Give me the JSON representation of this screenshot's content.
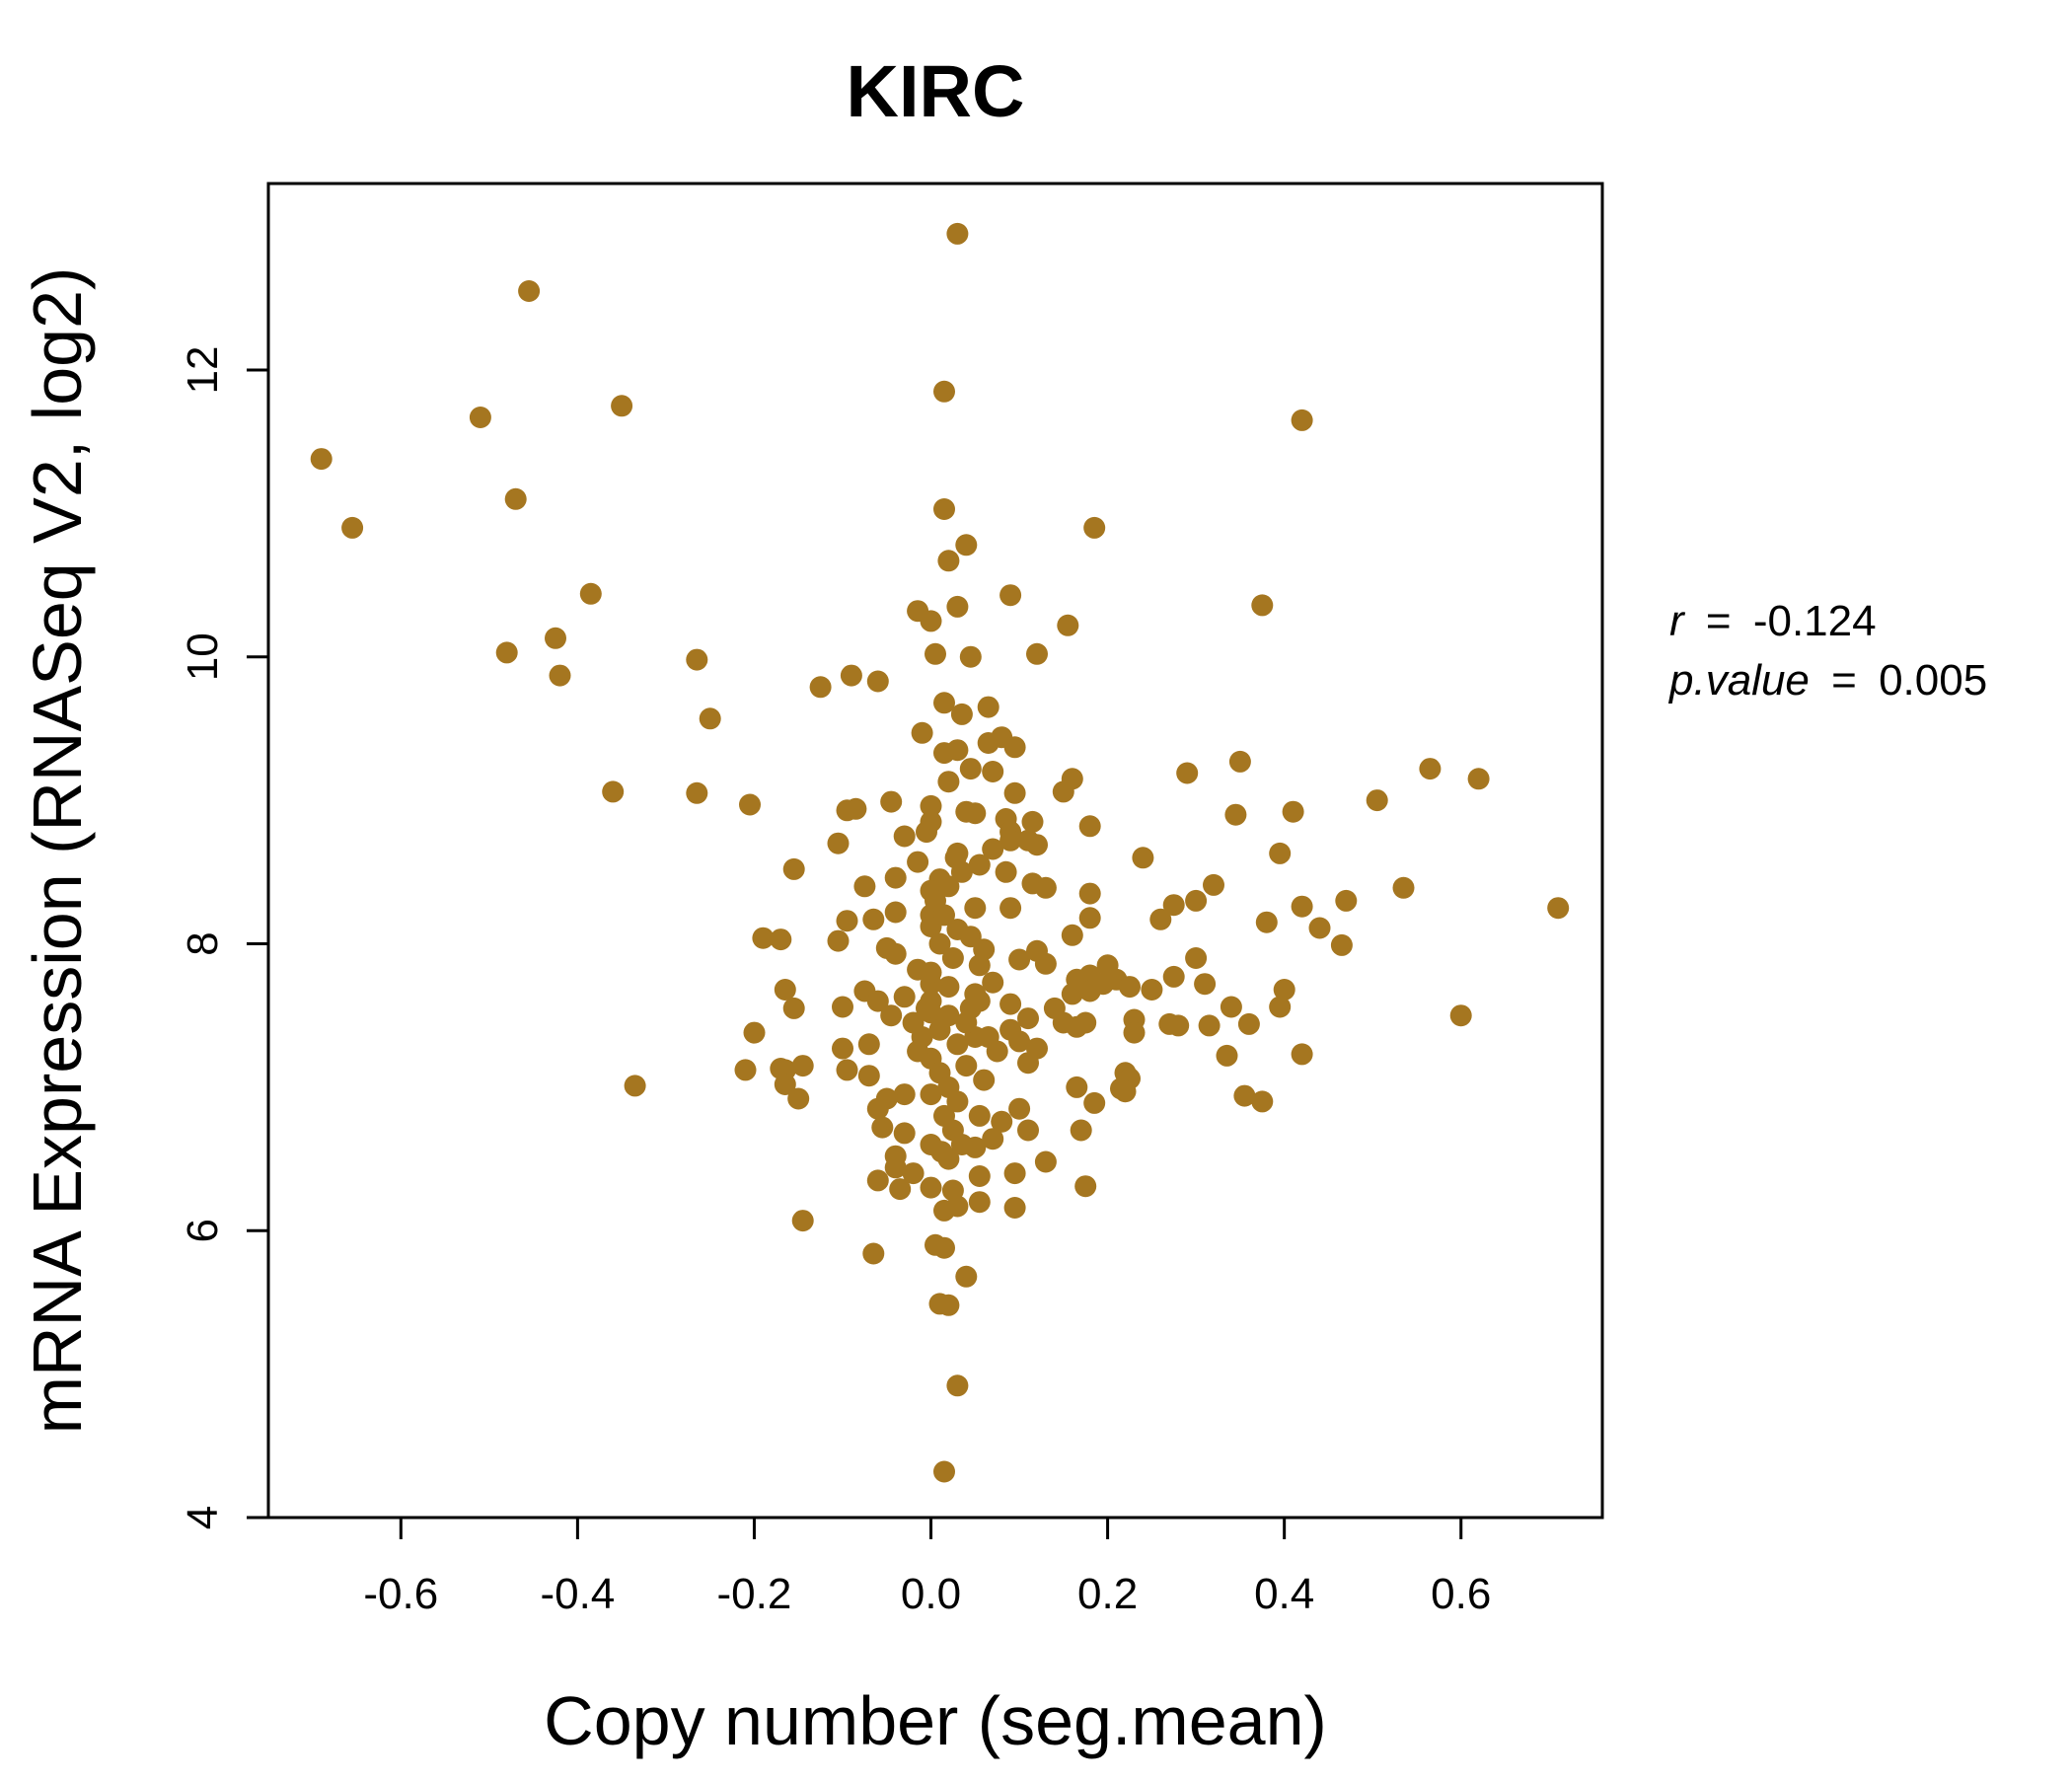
{
  "chart_data": {
    "type": "scatter",
    "title": "KIRC",
    "xlabel": "Copy number (seg.mean)",
    "ylabel": "mRNA Expression (RNASeq V2, log2)",
    "xlim": [
      -0.75,
      0.76
    ],
    "ylim": [
      4.0,
      13.3
    ],
    "x_ticks": [
      -0.6,
      -0.4,
      -0.2,
      0.0,
      0.2,
      0.4,
      0.6
    ],
    "x_tick_labels": [
      "-0.6",
      "-0.4",
      "-0.2",
      "0.0",
      "0.2",
      "0.4",
      "0.6"
    ],
    "y_ticks": [
      4,
      6,
      8,
      10,
      12
    ],
    "y_tick_labels": [
      "4",
      "6",
      "8",
      "10",
      "12"
    ],
    "grid": false,
    "legend": "none",
    "point_color": "#A57620",
    "title_color": "#A57620",
    "annotations": {
      "r_label": "r",
      "r_value": "-0.124",
      "p_label": "p.value",
      "p_value": "0.005",
      "equals": "="
    },
    "points": [
      [
        0.03,
        12.95
      ],
      [
        -0.455,
        12.55
      ],
      [
        -0.51,
        11.67
      ],
      [
        -0.35,
        11.75
      ],
      [
        0.015,
        11.85
      ],
      [
        0.42,
        11.65
      ],
      [
        -0.69,
        11.38
      ],
      [
        -0.47,
        11.1
      ],
      [
        -0.655,
        10.9
      ],
      [
        0.015,
        11.03
      ],
      [
        0.185,
        10.9
      ],
      [
        0.04,
        10.78
      ],
      [
        0.02,
        10.67
      ],
      [
        -0.385,
        10.44
      ],
      [
        0.09,
        10.43
      ],
      [
        0.03,
        10.35
      ],
      [
        0.375,
        10.36
      ],
      [
        -0.015,
        10.32
      ],
      [
        0.0,
        10.25
      ],
      [
        0.155,
        10.22
      ],
      [
        -0.425,
        10.13
      ],
      [
        -0.48,
        10.03
      ],
      [
        0.12,
        10.02
      ],
      [
        0.005,
        10.02
      ],
      [
        0.045,
        10.0
      ],
      [
        -0.265,
        9.98
      ],
      [
        -0.42,
        9.87
      ],
      [
        -0.09,
        9.87
      ],
      [
        -0.06,
        9.83
      ],
      [
        -0.125,
        9.79
      ],
      [
        0.015,
        9.68
      ],
      [
        0.065,
        9.65
      ],
      [
        0.035,
        9.6
      ],
      [
        -0.25,
        9.57
      ],
      [
        -0.01,
        9.47
      ],
      [
        0.08,
        9.44
      ],
      [
        0.065,
        9.4
      ],
      [
        0.095,
        9.37
      ],
      [
        0.03,
        9.35
      ],
      [
        0.015,
        9.33
      ],
      [
        0.045,
        9.22
      ],
      [
        0.07,
        9.2
      ],
      [
        0.565,
        9.22
      ],
      [
        0.35,
        9.27
      ],
      [
        0.29,
        9.19
      ],
      [
        0.62,
        9.15
      ],
      [
        0.16,
        9.15
      ],
      [
        0.02,
        9.13
      ],
      [
        -0.36,
        9.06
      ],
      [
        -0.265,
        9.05
      ],
      [
        0.15,
        9.06
      ],
      [
        0.095,
        9.05
      ],
      [
        0.505,
        9.0
      ],
      [
        -0.045,
        8.99
      ],
      [
        -0.205,
        8.97
      ],
      [
        0.0,
        8.96
      ],
      [
        -0.095,
        8.93
      ],
      [
        -0.085,
        8.94
      ],
      [
        0.04,
        8.92
      ],
      [
        0.05,
        8.91
      ],
      [
        0.41,
        8.92
      ],
      [
        0.345,
        8.9
      ],
      [
        0.085,
        8.87
      ],
      [
        0.115,
        8.85
      ],
      [
        0.0,
        8.85
      ],
      [
        0.18,
        8.82
      ],
      [
        0.09,
        8.78
      ],
      [
        -0.005,
        8.78
      ],
      [
        -0.03,
        8.75
      ],
      [
        0.11,
        8.72
      ],
      [
        0.09,
        8.72
      ],
      [
        -0.105,
        8.7
      ],
      [
        0.12,
        8.69
      ],
      [
        0.07,
        8.66
      ],
      [
        0.03,
        8.63
      ],
      [
        0.395,
        8.63
      ],
      [
        0.24,
        8.6
      ],
      [
        -0.015,
        8.57
      ],
      [
        0.055,
        8.55
      ],
      [
        -0.155,
        8.52
      ],
      [
        0.085,
        8.5
      ],
      [
        -0.04,
        8.46
      ],
      [
        0.01,
        8.45
      ],
      [
        0.115,
        8.42
      ],
      [
        0.32,
        8.41
      ],
      [
        -0.075,
        8.4
      ],
      [
        0.13,
        8.39
      ],
      [
        0.535,
        8.39
      ],
      [
        0.18,
        8.35
      ],
      [
        0.0,
        8.37
      ],
      [
        0.3,
        8.3
      ],
      [
        0.47,
        8.3
      ],
      [
        0.42,
        8.26
      ],
      [
        0.275,
        8.27
      ],
      [
        0.71,
        8.25
      ],
      [
        0.09,
        8.25
      ],
      [
        -0.04,
        8.22
      ],
      [
        0.0,
        8.2
      ],
      [
        0.18,
        8.18
      ],
      [
        0.26,
        8.17
      ],
      [
        -0.095,
        8.16
      ],
      [
        -0.065,
        8.17
      ],
      [
        0.38,
        8.15
      ],
      [
        0.44,
        8.11
      ],
      [
        0.0,
        8.12
      ],
      [
        0.16,
        8.06
      ],
      [
        -0.19,
        8.04
      ],
      [
        -0.17,
        8.03
      ],
      [
        -0.105,
        8.02
      ],
      [
        0.465,
        7.99
      ],
      [
        -0.05,
        7.97
      ],
      [
        0.06,
        7.96
      ],
      [
        0.12,
        7.95
      ],
      [
        -0.04,
        7.93
      ],
      [
        0.3,
        7.9
      ],
      [
        0.1,
        7.89
      ],
      [
        0.13,
        7.86
      ],
      [
        0.2,
        7.85
      ],
      [
        -0.015,
        7.82
      ],
      [
        0.18,
        7.78
      ],
      [
        0.275,
        7.77
      ],
      [
        0.165,
        7.75
      ],
      [
        0.21,
        7.75
      ],
      [
        0.07,
        7.73
      ],
      [
        0.31,
        7.72
      ],
      [
        0.195,
        7.72
      ],
      [
        0.0,
        7.72
      ],
      [
        0.225,
        7.7
      ],
      [
        -0.165,
        7.68
      ],
      [
        0.25,
        7.68
      ],
      [
        0.4,
        7.68
      ],
      [
        -0.075,
        7.67
      ],
      [
        0.18,
        7.67
      ],
      [
        0.16,
        7.65
      ],
      [
        -0.03,
        7.63
      ],
      [
        0.055,
        7.6
      ],
      [
        -0.06,
        7.6
      ],
      [
        0.09,
        7.58
      ],
      [
        -0.1,
        7.56
      ],
      [
        0.34,
        7.56
      ],
      [
        0.395,
        7.56
      ],
      [
        -0.155,
        7.55
      ],
      [
        0.14,
        7.55
      ],
      [
        0.0,
        7.52
      ],
      [
        0.6,
        7.5
      ],
      [
        -0.045,
        7.5
      ],
      [
        0.11,
        7.48
      ],
      [
        0.23,
        7.47
      ],
      [
        0.15,
        7.45
      ],
      [
        0.175,
        7.45
      ],
      [
        0.27,
        7.44
      ],
      [
        0.28,
        7.43
      ],
      [
        0.315,
        7.43
      ],
      [
        0.36,
        7.44
      ],
      [
        0.165,
        7.42
      ],
      [
        0.09,
        7.4
      ],
      [
        -0.2,
        7.38
      ],
      [
        0.23,
        7.38
      ],
      [
        0.05,
        7.35
      ],
      [
        0.1,
        7.32
      ],
      [
        -0.07,
        7.3
      ],
      [
        -0.1,
        7.27
      ],
      [
        0.12,
        7.27
      ],
      [
        0.075,
        7.25
      ],
      [
        0.42,
        7.23
      ],
      [
        0.335,
        7.22
      ],
      [
        0.0,
        7.2
      ],
      [
        0.11,
        7.17
      ],
      [
        -0.145,
        7.15
      ],
      [
        -0.17,
        7.13
      ],
      [
        -0.21,
        7.12
      ],
      [
        -0.095,
        7.12
      ],
      [
        -0.165,
        7.12
      ],
      [
        0.22,
        7.1
      ],
      [
        0.225,
        7.06
      ],
      [
        -0.07,
        7.08
      ],
      [
        -0.165,
        7.02
      ],
      [
        -0.335,
        7.01
      ],
      [
        0.165,
        7.0
      ],
      [
        0.215,
        6.99
      ],
      [
        0.22,
        6.97
      ],
      [
        -0.03,
        6.95
      ],
      [
        0.355,
        6.94
      ],
      [
        0.375,
        6.9
      ],
      [
        -0.15,
        6.92
      ],
      [
        0.185,
        6.89
      ],
      [
        -0.05,
        6.92
      ],
      [
        0.1,
        6.85
      ],
      [
        -0.06,
        6.85
      ],
      [
        0.055,
        6.8
      ],
      [
        0.08,
        6.76
      ],
      [
        -0.055,
        6.72
      ],
      [
        0.11,
        6.7
      ],
      [
        0.17,
        6.7
      ],
      [
        -0.03,
        6.68
      ],
      [
        0.07,
        6.64
      ],
      [
        0.0,
        6.6
      ],
      [
        0.05,
        6.58
      ],
      [
        -0.04,
        6.52
      ],
      [
        0.02,
        6.5
      ],
      [
        0.13,
        6.48
      ],
      [
        -0.04,
        6.44
      ],
      [
        -0.02,
        6.4
      ],
      [
        0.055,
        6.38
      ],
      [
        0.095,
        6.4
      ],
      [
        -0.06,
        6.35
      ],
      [
        0.0,
        6.3
      ],
      [
        0.175,
        6.31
      ],
      [
        -0.035,
        6.29
      ],
      [
        0.025,
        6.28
      ],
      [
        0.055,
        6.2
      ],
      [
        0.095,
        6.16
      ],
      [
        0.03,
        6.17
      ],
      [
        0.015,
        6.14
      ],
      [
        -0.145,
        6.07
      ],
      [
        0.005,
        5.9
      ],
      [
        0.015,
        5.88
      ],
      [
        -0.065,
        5.84
      ],
      [
        0.04,
        5.68
      ],
      [
        0.01,
        5.49
      ],
      [
        0.02,
        5.48
      ],
      [
        0.03,
        4.92
      ],
      [
        0.015,
        4.32
      ],
      [
        0.0,
        7.6
      ],
      [
        0.02,
        7.5
      ],
      [
        0.01,
        7.4
      ],
      [
        0.03,
        7.3
      ],
      [
        -0.01,
        7.35
      ],
      [
        0.04,
        7.45
      ],
      [
        0.02,
        7.7
      ],
      [
        0.0,
        7.8
      ],
      [
        0.025,
        7.9
      ],
      [
        0.01,
        8.0
      ],
      [
        0.03,
        8.1
      ],
      [
        0.015,
        8.2
      ],
      [
        0.005,
        8.3
      ],
      [
        0.02,
        8.4
      ],
      [
        0.035,
        8.5
      ],
      [
        0.01,
        7.1
      ],
      [
        0.02,
        7.0
      ],
      [
        0.03,
        6.9
      ],
      [
        0.0,
        6.95
      ],
      [
        0.015,
        6.8
      ],
      [
        0.025,
        6.7
      ],
      [
        0.04,
        7.15
      ],
      [
        0.045,
        7.55
      ],
      [
        0.05,
        7.65
      ],
      [
        0.055,
        7.85
      ],
      [
        -0.005,
        7.55
      ],
      [
        -0.015,
        7.25
      ],
      [
        0.06,
        7.05
      ],
      [
        0.065,
        7.35
      ],
      [
        0.045,
        8.05
      ],
      [
        -0.02,
        7.45
      ],
      [
        0.035,
        6.6
      ],
      [
        0.012,
        6.55
      ],
      [
        0.028,
        8.6
      ],
      [
        0.05,
        8.25
      ]
    ]
  }
}
